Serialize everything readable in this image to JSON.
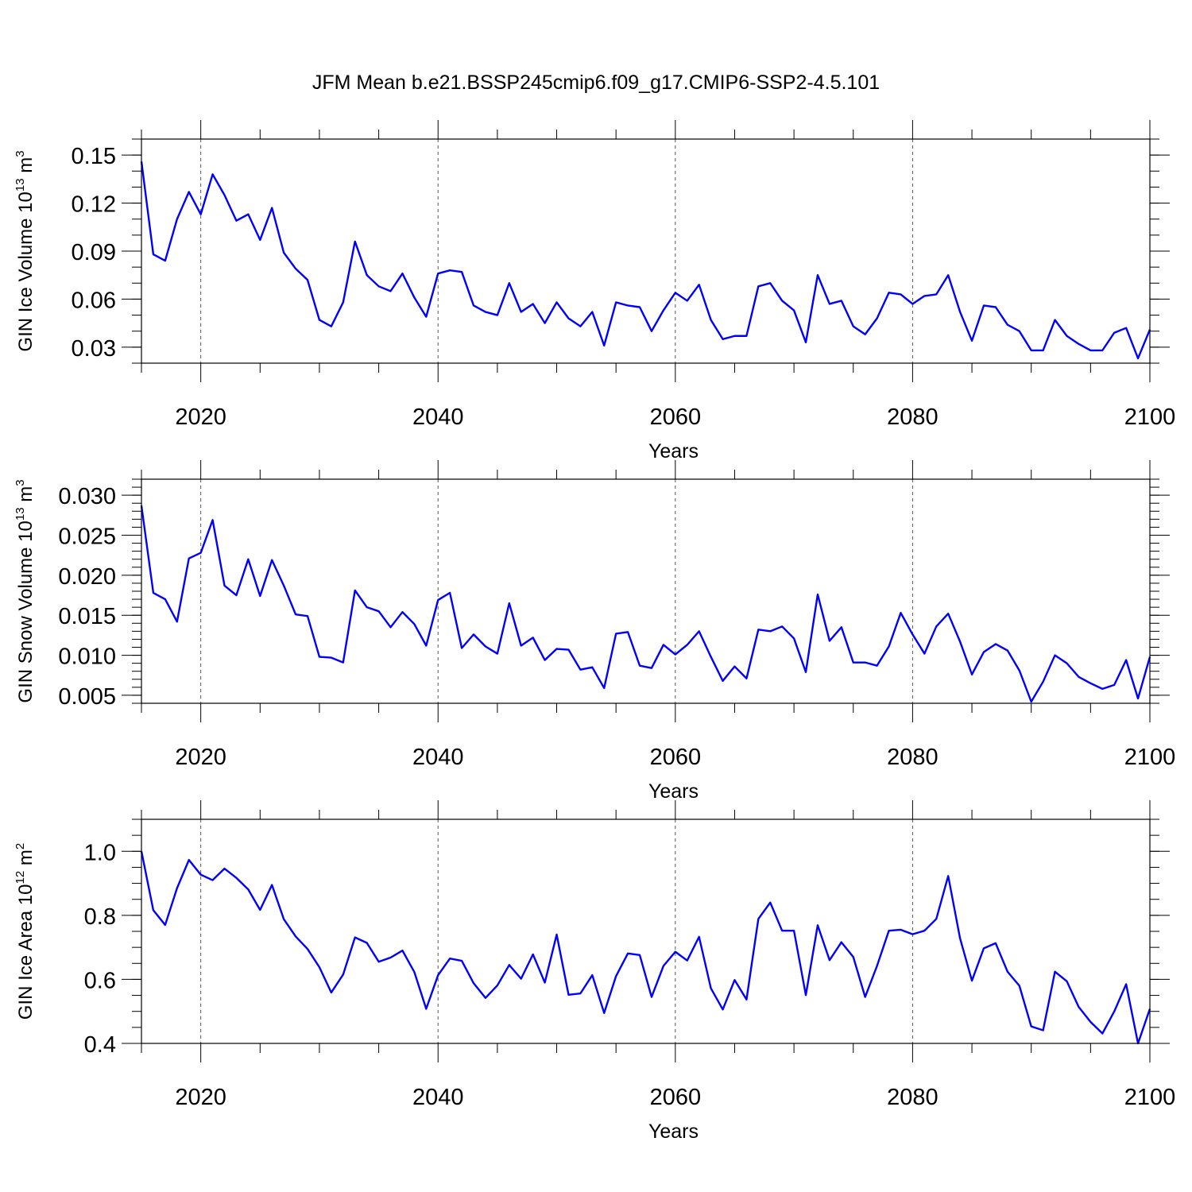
{
  "figure": {
    "title": "JFM Mean b.e21.BSSP245cmip6.f09_g17.CMIP6-SSP2-4.5.101",
    "line_color": "#0000ff"
  },
  "chart_data": [
    {
      "type": "line",
      "title": "JFM Mean b.e21.BSSP245cmip6.f09_g17.CMIP6-SSP2-4.5.101",
      "xlabel": "Years",
      "ylabel_base": "GIN Ice Volume 10",
      "ylabel_exp": "13",
      "ylabel_unit": " m",
      "ylabel_unit_exp": "3",
      "xlim": [
        2015,
        2100
      ],
      "ylim": [
        0.02,
        0.16
      ],
      "xticks": [
        2020,
        2040,
        2060,
        2080,
        2100
      ],
      "xtick_labels": [
        "2020",
        "2040",
        "2060",
        "2080",
        "2100"
      ],
      "yticks": [
        0.03,
        0.06,
        0.09,
        0.12,
        0.15
      ],
      "ytick_labels": [
        "0.03",
        "0.06",
        "0.09",
        "0.12",
        "0.15"
      ],
      "yminor_step": 0.01,
      "grid": "dashed vertical at major x ticks",
      "x_start": 2015,
      "series": [
        {
          "name": "GIN Ice Volume",
          "values": [
            0.146,
            0.088,
            0.084,
            0.11,
            0.127,
            0.113,
            0.138,
            0.125,
            0.109,
            0.113,
            0.097,
            0.117,
            0.089,
            0.079,
            0.072,
            0.047,
            0.043,
            0.058,
            0.096,
            0.075,
            0.068,
            0.065,
            0.076,
            0.061,
            0.049,
            0.076,
            0.078,
            0.077,
            0.056,
            0.052,
            0.05,
            0.07,
            0.052,
            0.057,
            0.045,
            0.058,
            0.048,
            0.043,
            0.052,
            0.031,
            0.058,
            0.056,
            0.055,
            0.04,
            0.053,
            0.064,
            0.059,
            0.069,
            0.047,
            0.035,
            0.037,
            0.037,
            0.068,
            0.07,
            0.059,
            0.053,
            0.033,
            0.075,
            0.057,
            0.059,
            0.043,
            0.038,
            0.048,
            0.064,
            0.063,
            0.057,
            0.062,
            0.063,
            0.075,
            0.052,
            0.034,
            0.056,
            0.055,
            0.044,
            0.04,
            0.028,
            0.028,
            0.047,
            0.037,
            0.032,
            0.028,
            0.028,
            0.039,
            0.042,
            0.023,
            0.041
          ]
        }
      ]
    },
    {
      "type": "line",
      "xlabel": "Years",
      "ylabel_base": "GIN Snow Volume 10",
      "ylabel_exp": "13",
      "ylabel_unit": " m",
      "ylabel_unit_exp": "3",
      "xlim": [
        2015,
        2100
      ],
      "ylim": [
        0.004,
        0.032
      ],
      "xticks": [
        2020,
        2040,
        2060,
        2080,
        2100
      ],
      "xtick_labels": [
        "2020",
        "2040",
        "2060",
        "2080",
        "2100"
      ],
      "yticks": [
        0.005,
        0.01,
        0.015,
        0.02,
        0.025,
        0.03
      ],
      "ytick_labels": [
        "0.005",
        "0.010",
        "0.015",
        "0.020",
        "0.025",
        "0.030"
      ],
      "yminor_step": 0.001,
      "grid": "dashed vertical at major x ticks",
      "x_start": 2015,
      "series": [
        {
          "name": "GIN Snow Volume",
          "values": [
            0.0287,
            0.0178,
            0.017,
            0.0142,
            0.0221,
            0.0228,
            0.0269,
            0.0187,
            0.0175,
            0.022,
            0.0174,
            0.0219,
            0.0187,
            0.0151,
            0.0149,
            0.0098,
            0.0097,
            0.0091,
            0.0181,
            0.016,
            0.0155,
            0.0135,
            0.0154,
            0.0139,
            0.0112,
            0.0169,
            0.0178,
            0.0109,
            0.0126,
            0.0111,
            0.0102,
            0.0165,
            0.0112,
            0.0122,
            0.0094,
            0.0108,
            0.0107,
            0.0082,
            0.0085,
            0.0059,
            0.0127,
            0.0129,
            0.0087,
            0.0084,
            0.0113,
            0.0101,
            0.0113,
            0.013,
            0.0098,
            0.0068,
            0.0086,
            0.0071,
            0.0132,
            0.013,
            0.0136,
            0.0121,
            0.0079,
            0.0176,
            0.0118,
            0.0135,
            0.0091,
            0.0091,
            0.0087,
            0.0111,
            0.0153,
            0.0126,
            0.0102,
            0.0136,
            0.0152,
            0.0117,
            0.0076,
            0.0104,
            0.0114,
            0.0106,
            0.0081,
            0.0042,
            0.0067,
            0.01,
            0.009,
            0.0073,
            0.0065,
            0.0058,
            0.0063,
            0.0094,
            0.0046,
            0.0098
          ]
        }
      ]
    },
    {
      "type": "line",
      "xlabel": "Years",
      "ylabel_base": "GIN Ice Area 10",
      "ylabel_exp": "12",
      "ylabel_unit": " m",
      "ylabel_unit_exp": "2",
      "xlim": [
        2015,
        2100
      ],
      "ylim": [
        0.4,
        1.1
      ],
      "xticks": [
        2020,
        2040,
        2060,
        2080,
        2100
      ],
      "xtick_labels": [
        "2020",
        "2040",
        "2060",
        "2080",
        "2100"
      ],
      "yticks": [
        0.4,
        0.6,
        0.8,
        1.0
      ],
      "ytick_labels": [
        "0.4",
        "0.6",
        "0.8",
        "1.0"
      ],
      "yminor_step": 0.05,
      "grid": "dashed vertical at major x ticks",
      "x_start": 2015,
      "series": [
        {
          "name": "GIN Ice Area",
          "values": [
            1.0,
            0.816,
            0.77,
            0.885,
            0.973,
            0.927,
            0.91,
            0.946,
            0.917,
            0.881,
            0.817,
            0.895,
            0.788,
            0.734,
            0.695,
            0.638,
            0.559,
            0.615,
            0.731,
            0.714,
            0.655,
            0.668,
            0.69,
            0.623,
            0.508,
            0.613,
            0.665,
            0.658,
            0.588,
            0.542,
            0.581,
            0.645,
            0.602,
            0.678,
            0.59,
            0.74,
            0.552,
            0.556,
            0.613,
            0.495,
            0.61,
            0.681,
            0.676,
            0.545,
            0.642,
            0.686,
            0.659,
            0.733,
            0.572,
            0.506,
            0.598,
            0.537,
            0.789,
            0.84,
            0.752,
            0.752,
            0.551,
            0.769,
            0.66,
            0.716,
            0.67,
            0.545,
            0.642,
            0.752,
            0.755,
            0.741,
            0.752,
            0.789,
            0.923,
            0.728,
            0.596,
            0.697,
            0.713,
            0.624,
            0.58,
            0.453,
            0.441,
            0.624,
            0.594,
            0.514,
            0.467,
            0.431,
            0.5,
            0.585,
            0.4,
            0.508
          ]
        }
      ]
    }
  ]
}
